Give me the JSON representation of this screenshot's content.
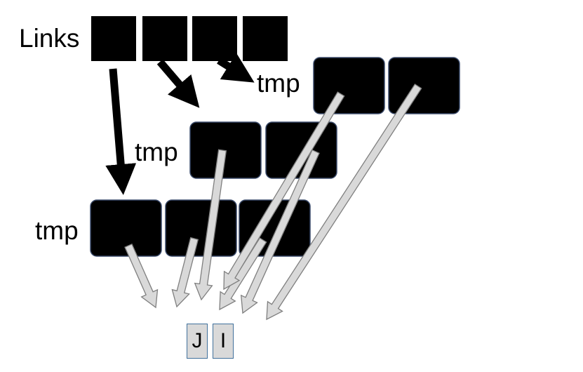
{
  "labels": {
    "links": "Links",
    "tmp_1": "tmp",
    "tmp_2": "tmp",
    "tmp_3": "tmp"
  },
  "targets": {
    "j": "J",
    "i": "I"
  },
  "colors": {
    "cell_fill": "#000000",
    "cell_stroke": "#3a4a6a",
    "pointer_arrow": "#000000",
    "link_arrow_fill": "#d9d9d9",
    "link_arrow_stroke": "#7f7f7f",
    "target_fill": "#d9d9d9",
    "target_stroke": "#41719c"
  }
}
